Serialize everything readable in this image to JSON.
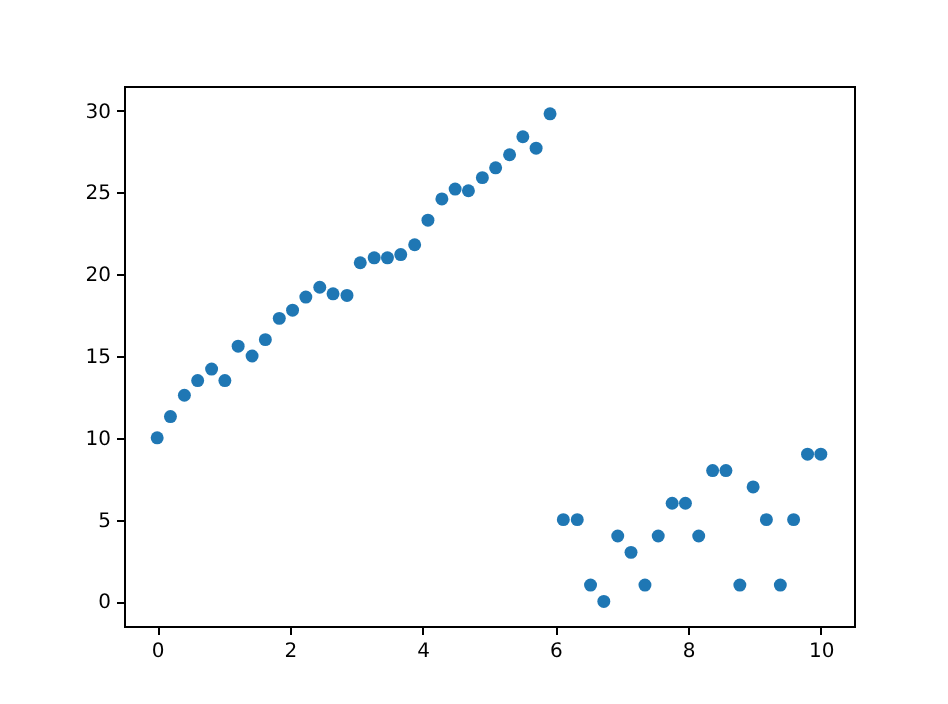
{
  "chart_data": {
    "type": "scatter",
    "marker": "circle",
    "grid": false,
    "x": [
      0,
      0.2,
      0.41,
      0.61,
      0.82,
      1.02,
      1.22,
      1.43,
      1.63,
      1.84,
      2.04,
      2.24,
      2.45,
      2.65,
      2.86,
      3.06,
      3.27,
      3.47,
      3.67,
      3.88,
      4.08,
      4.29,
      4.49,
      4.69,
      4.9,
      5.1,
      5.31,
      5.51,
      5.71,
      5.92,
      6.12,
      6.33,
      6.53,
      6.73,
      6.94,
      7.14,
      7.35,
      7.55,
      7.76,
      7.96,
      8.16,
      8.37,
      8.57,
      8.78,
      8.98,
      9.18,
      9.39,
      9.59,
      9.8,
      10
    ],
    "series": [
      {
        "color": "#1f77b4",
        "values": [
          10.0,
          11.3,
          12.6,
          13.5,
          14.2,
          13.5,
          15.6,
          15.0,
          16.0,
          17.3,
          17.8,
          18.6,
          19.2,
          18.8,
          18.7,
          20.7,
          21.0,
          21.0,
          21.2,
          21.8,
          23.3,
          24.6,
          25.2,
          25.1,
          25.9,
          26.5,
          27.3,
          28.4,
          27.7,
          29.8,
          5,
          5,
          1,
          0,
          4,
          3,
          1,
          4,
          6,
          6,
          4,
          8,
          8,
          1,
          7,
          5,
          1,
          5,
          9,
          9
        ]
      }
    ],
    "xlim": [
      -0.5,
      10.5
    ],
    "xticks": [
      0,
      2,
      4,
      6,
      8,
      10
    ],
    "ylim": [
      -1.5,
      31.5
    ],
    "yticks": [
      0,
      5,
      10,
      15,
      20,
      25,
      30
    ]
  }
}
